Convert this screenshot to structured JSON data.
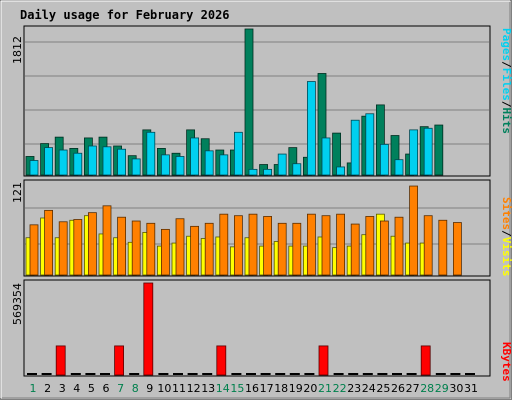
{
  "colors": {
    "background": "#c0c0c0",
    "title": "#0000b0",
    "weekday": "#000000",
    "weekend": "#00804d",
    "hits": "#00805c",
    "files": "#00d0f0",
    "pages": "#00d0f0",
    "visits": "#ffff00",
    "sites": "#ff8000",
    "kbytes": "#ff0000",
    "slash": "#000000"
  },
  "chart_data": [
    {
      "type": "bar",
      "title": "Daily usage for February 2026",
      "ylabel_max": "1812",
      "ylim": [
        0,
        1812
      ],
      "categories": [
        "1",
        "2",
        "3",
        "4",
        "5",
        "6",
        "7",
        "8",
        "9",
        "10",
        "11",
        "12",
        "13",
        "14",
        "15",
        "16",
        "17",
        "18",
        "19",
        "20",
        "21",
        "22",
        "23",
        "24",
        "25",
        "26",
        "27",
        "28",
        "29",
        "30",
        "31"
      ],
      "weekend_days": [
        "1",
        "7",
        "8",
        "14",
        "15",
        "21",
        "22",
        "28",
        "29"
      ],
      "legend": [
        {
          "label": "Pages",
          "color_key": "pages"
        },
        {
          "label": "Files",
          "color_key": "files"
        },
        {
          "label": "Hits",
          "color_key": "hits"
        }
      ],
      "series": [
        {
          "name": "Hits",
          "values": [
            230,
            390,
            470,
            330,
            460,
            470,
            360,
            240,
            560,
            330,
            270,
            560,
            450,
            310,
            310,
            1812,
            130,
            130,
            340,
            220,
            1260,
            520,
            150,
            730,
            870,
            490,
            260,
            600,
            620,
            0,
            0
          ]
        },
        {
          "name": "Files",
          "values": [
            180,
            340,
            310,
            270,
            360,
            350,
            320,
            200,
            530,
            250,
            230,
            460,
            300,
            250,
            530,
            70,
            70,
            260,
            140,
            1160,
            460,
            100,
            680,
            760,
            380,
            190,
            560,
            580,
            0,
            0,
            0
          ]
        }
      ]
    },
    {
      "type": "bar",
      "ylabel_max": "121",
      "ylim": [
        0,
        121
      ],
      "legend": [
        {
          "label": "Sites",
          "color_key": "sites"
        },
        {
          "label": "Visits",
          "color_key": "visits"
        }
      ],
      "series": [
        {
          "name": "Sites",
          "values": [
            66,
            85,
            70,
            73,
            82,
            91,
            76,
            71,
            68,
            60,
            74,
            64,
            68,
            80,
            78,
            80,
            77,
            68,
            68,
            80,
            78,
            80,
            67,
            77,
            71,
            76,
            117,
            78,
            72,
            69,
            0
          ]
        },
        {
          "name": "Visits",
          "values": [
            49,
            75,
            49,
            72,
            78,
            54,
            49,
            43,
            56,
            38,
            42,
            51,
            48,
            50,
            37,
            49,
            38,
            44,
            38,
            38,
            50,
            36,
            38,
            53,
            80,
            51,
            42,
            42,
            0,
            0,
            0
          ]
        }
      ]
    },
    {
      "type": "bar",
      "ylabel_max": "569354",
      "ylim": [
        0,
        569354
      ],
      "legend": [
        {
          "label": "KBytes",
          "color_key": "kbytes"
        }
      ],
      "series": [
        {
          "name": "KBytes",
          "values": [
            0,
            0,
            180000,
            0,
            0,
            0,
            180000,
            0,
            569354,
            0,
            0,
            0,
            0,
            180000,
            0,
            0,
            0,
            0,
            0,
            0,
            180000,
            0,
            0,
            0,
            0,
            0,
            0,
            180000,
            0,
            0,
            0
          ]
        }
      ]
    }
  ]
}
